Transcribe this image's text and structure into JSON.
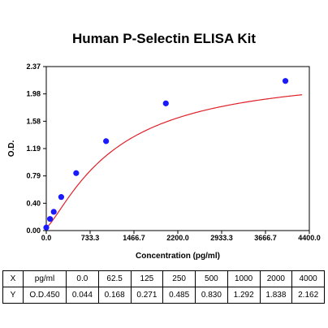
{
  "chart_data": {
    "type": "scatter",
    "title": "Human P-Selectin ELISA Kit",
    "xlabel": "Concentration (pg/ml)",
    "ylabel": "O.D.",
    "xlim": [
      0,
      4400
    ],
    "ylim": [
      0,
      2.37
    ],
    "x_ticks": [
      "0.0",
      "733.3",
      "1466.7",
      "2200.0",
      "2933.3",
      "3666.7",
      "4400.0"
    ],
    "y_ticks": [
      "0.00",
      "0.40",
      "0.79",
      "1.19",
      "1.58",
      "1.98",
      "2.37"
    ],
    "grid": false,
    "point_color": "#1a1aff",
    "curve_color": "#e0202a",
    "x": [
      0,
      62.5,
      125,
      250,
      500,
      1000,
      2000,
      4000
    ],
    "y": [
      0.044,
      0.168,
      0.271,
      0.485,
      0.83,
      1.292,
      1.838,
      2.162
    ],
    "fit": "4PL"
  },
  "table": {
    "row_x": {
      "label": "X",
      "unit": "pg/ml",
      "values": [
        "0.0",
        "62.5",
        "125",
        "250",
        "500",
        "1000",
        "2000",
        "4000"
      ]
    },
    "row_y": {
      "label": "Y",
      "unit": "O.D.450",
      "values": [
        "0.044",
        "0.168",
        "0.271",
        "0.485",
        "0.830",
        "1.292",
        "1.838",
        "2.162"
      ]
    }
  }
}
